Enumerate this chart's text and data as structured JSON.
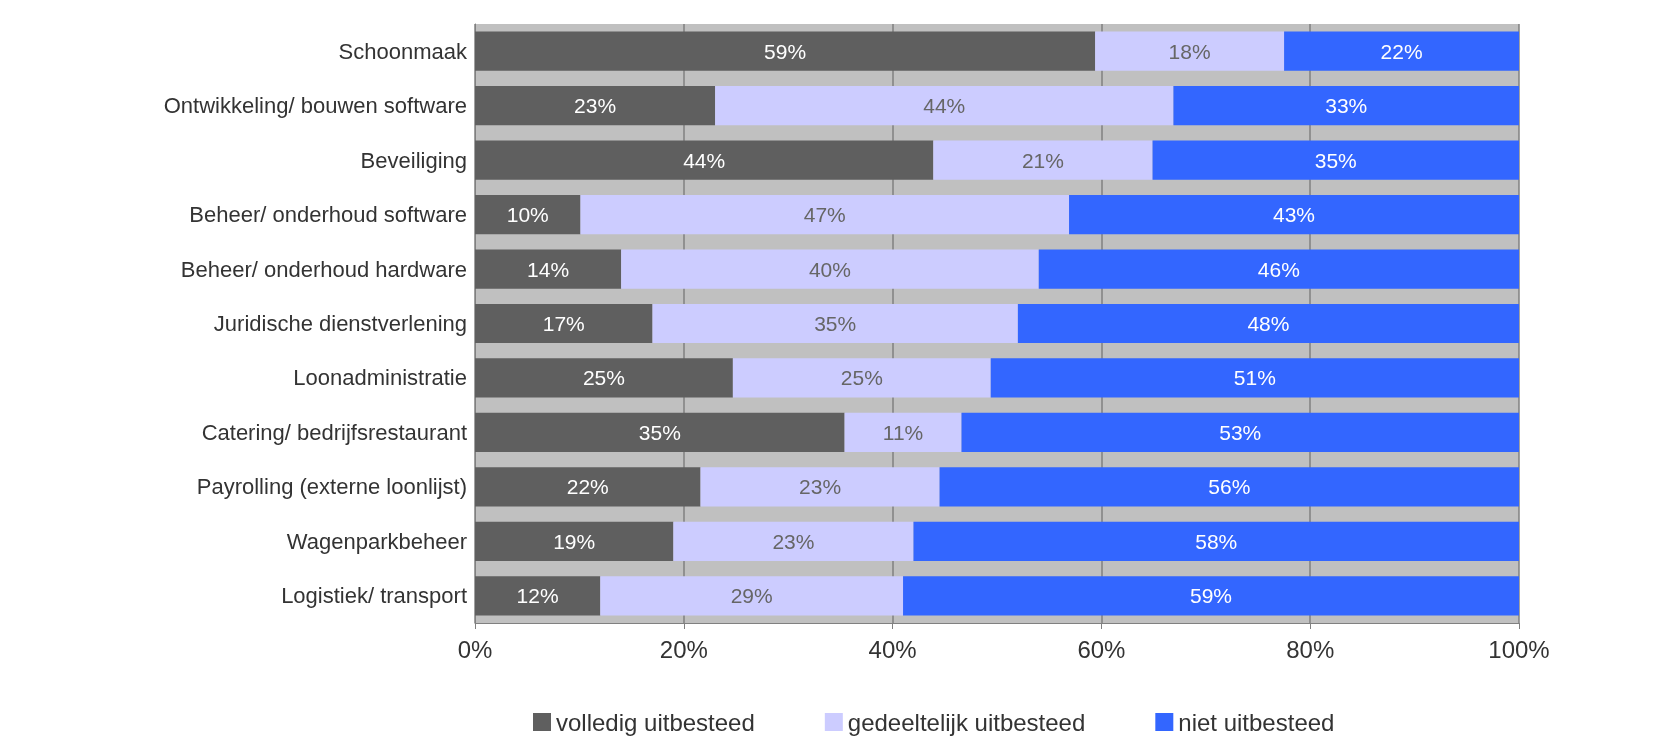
{
  "chart_data": {
    "type": "bar",
    "orientation": "horizontal",
    "stacked": true,
    "categories": [
      "Schoonmaak",
      "Ontwikkeling/ bouwen software",
      "Beveiliging",
      "Beheer/ onderhoud software",
      "Beheer/ onderhoud hardware",
      "Juridische dienstverlening",
      "Loonadministratie",
      "Catering/ bedrijfsrestaurant",
      "Payrolling (externe loonlijst)",
      "Wagenparkbeheer",
      "Logistiek/ transport"
    ],
    "series": [
      {
        "name": "volledig uitbesteed",
        "color": "#5f5f5f",
        "values": [
          59.4,
          23.0,
          43.9,
          10.1,
          14.0,
          17.0,
          24.7,
          35.4,
          21.6,
          19.0,
          12.0
        ],
        "value_labels": [
          "59%",
          "23%",
          "44%",
          "10%",
          "14%",
          "17%",
          "25%",
          "35%",
          "22%",
          "19%",
          "12%"
        ]
      },
      {
        "name": "gedeeltelijk uitbesteed",
        "color": "#ccccff",
        "values": [
          18.1,
          43.9,
          21.0,
          46.8,
          40.0,
          35.0,
          24.7,
          11.2,
          22.9,
          23.0,
          29.0
        ],
        "value_labels": [
          "18%",
          "44%",
          "21%",
          "47%",
          "40%",
          "35%",
          "25%",
          "11%",
          "23%",
          "23%",
          "29%"
        ]
      },
      {
        "name": "niet uitbesteed",
        "color": "#3366ff",
        "values": [
          22.5,
          33.1,
          35.1,
          43.1,
          46.0,
          48.0,
          50.6,
          53.4,
          55.5,
          58.0,
          59.0
        ],
        "value_labels": [
          "22%",
          "33%",
          "35%",
          "43%",
          "46%",
          "48%",
          "51%",
          "53%",
          "56%",
          "58%",
          "59%"
        ]
      }
    ],
    "xlim": [
      0,
      100
    ],
    "xticks": [
      {
        "value": 0,
        "label": "0%"
      },
      {
        "value": 20,
        "label": "20%"
      },
      {
        "value": 40,
        "label": "40%"
      },
      {
        "value": 60,
        "label": "60%"
      },
      {
        "value": 80,
        "label": "80%"
      },
      {
        "value": 100,
        "label": "100%"
      }
    ],
    "grid": "x",
    "legend": "bottom"
  }
}
